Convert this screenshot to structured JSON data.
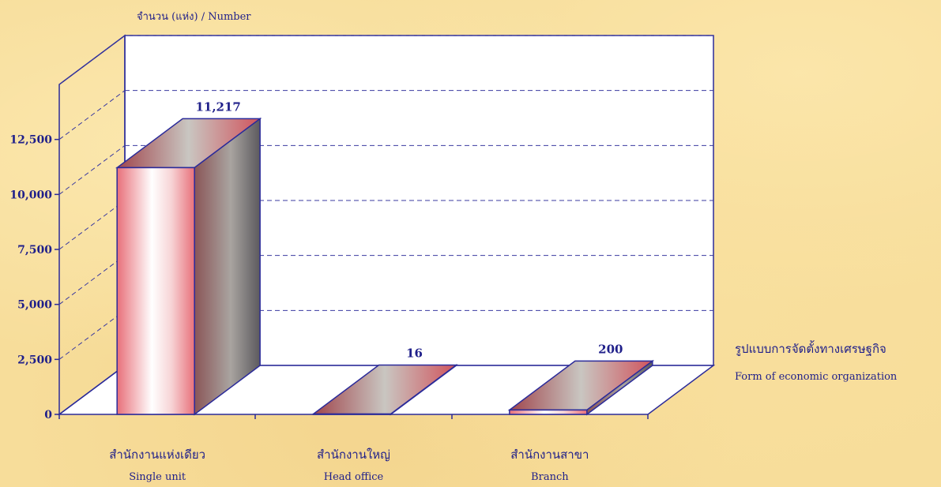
{
  "chart_data": {
    "type": "bar",
    "style": "3d",
    "y_title": "จำนวน (แห่ง)  /  Number",
    "x_title": "รูปแบบการจัดตั้งทางเศรษฐกิจ",
    "x_title_en": "Form of  economic organization",
    "categories": [
      "สำนักงานแห่งเดียว",
      "สำนักงานใหญ่",
      "สำนักงานสาขา"
    ],
    "categories_en": [
      "Single unit",
      "Head office",
      "Branch"
    ],
    "values": [
      11217,
      16,
      200
    ],
    "value_labels": [
      "11,217",
      "16",
      "200"
    ],
    "ylim": [
      0,
      15000
    ],
    "y_ticks": [
      0,
      2500,
      5000,
      7500,
      10000,
      12500
    ],
    "y_tick_labels": [
      "0",
      "2,500",
      "5,000",
      "7,500",
      "10,000",
      "12,500"
    ],
    "grid": true,
    "legend": "none",
    "colors": {
      "text": "#1f1f8a",
      "axis": "#2b2b9a",
      "grid": "#3a3aa0",
      "wall": "#ffffff",
      "bar_front_edge": "#e8707a",
      "bar_side_dark": "#6b5a5a"
    }
  }
}
